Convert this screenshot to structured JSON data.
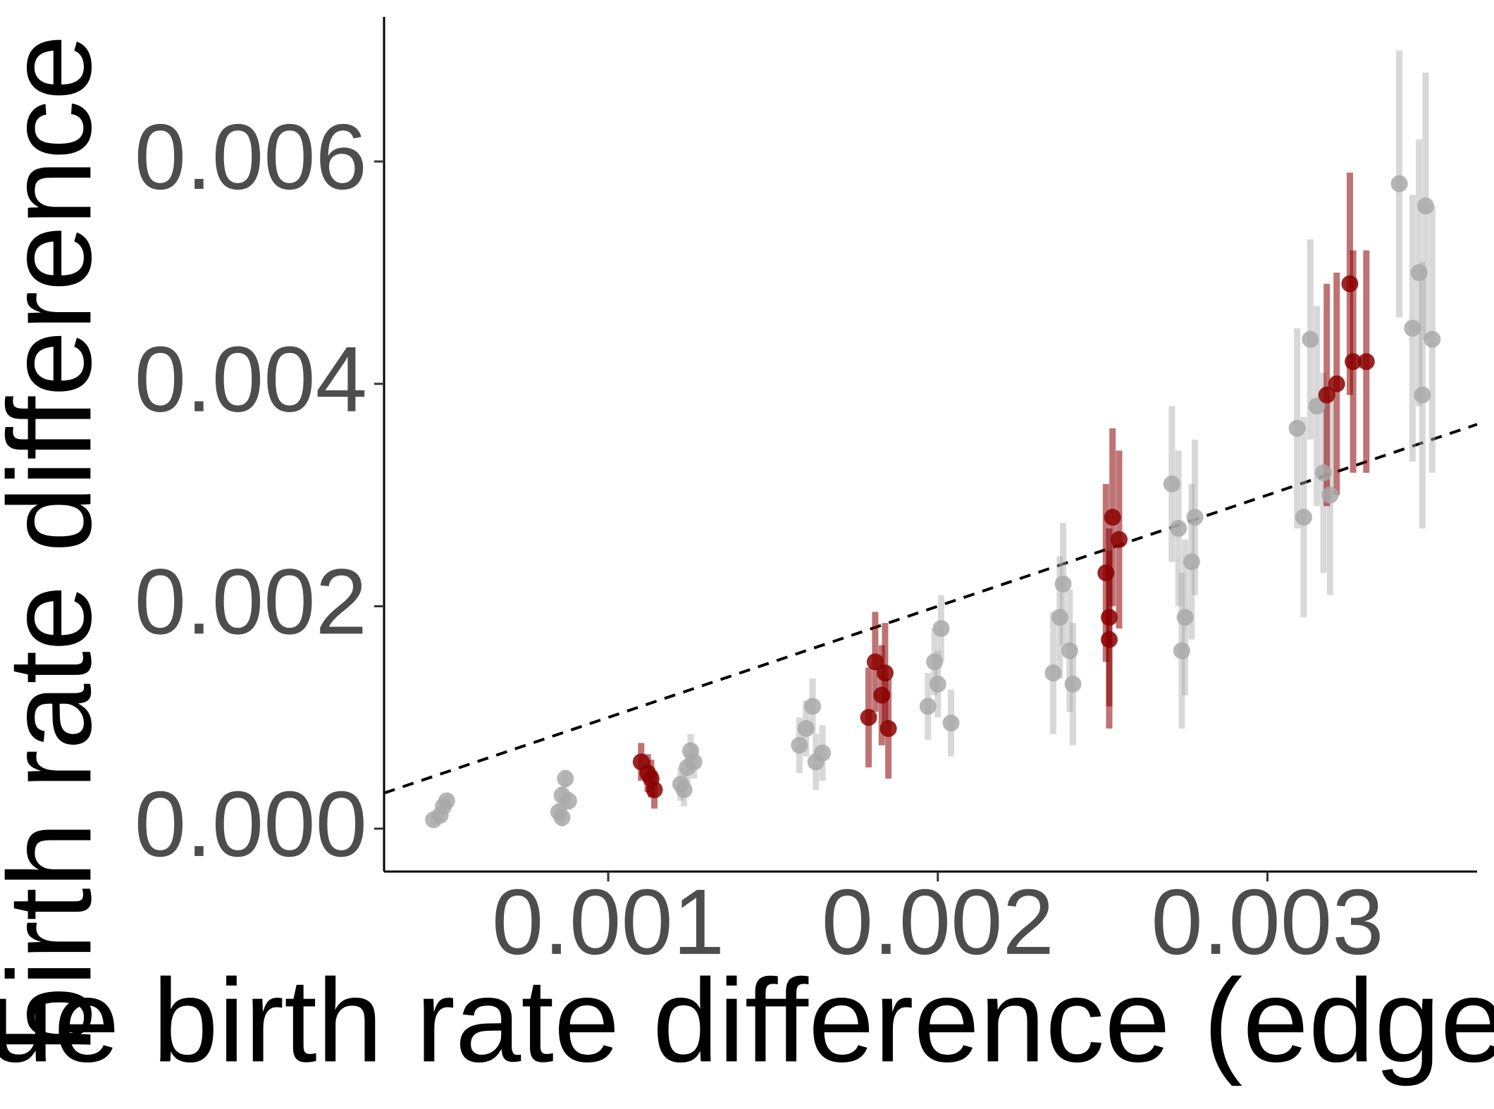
{
  "chart_data": {
    "type": "scatter",
    "x_label": "ue birth rate difference (edge",
    "y_label": "birth rate difference (",
    "xlim": [
      0.00032,
      0.003636
    ],
    "ylim": [
      -0.000386,
      0.0073
    ],
    "xticks": [
      0.001,
      0.002,
      0.003
    ],
    "yticks": [
      {
        "value": 0,
        "label": "0.000"
      },
      {
        "value": 0.002,
        "label": "0.002"
      },
      {
        "value": 0.004,
        "label": "0.004"
      },
      {
        "value": 0.006,
        "label": "0.006"
      }
    ],
    "identity_line": true,
    "grid": false,
    "series": [
      {
        "color": "#a9a9a9",
        "x": [
          0.00047,
          0.00049,
          0.0005,
          0.00051,
          0.00085,
          0.00086,
          0.00087,
          0.00088,
          0.00086,
          0.00122,
          0.00124,
          0.00126,
          0.00125,
          0.00123,
          0.00158,
          0.0016,
          0.00162,
          0.00163,
          0.00165,
          0.00197,
          0.00199,
          0.002,
          0.00201,
          0.00204,
          0.00235,
          0.00237,
          0.00238,
          0.0024,
          0.00241,
          0.00271,
          0.00273,
          0.00275,
          0.00277,
          0.00278,
          0.00274,
          0.00309,
          0.00311,
          0.00313,
          0.00315,
          0.00317,
          0.00319,
          0.0034,
          0.00344,
          0.00346,
          0.00348,
          0.0035,
          0.00347
        ],
        "values": [
          8e-05,
          0.00012,
          0.0002,
          0.00025,
          0.00015,
          0.0003,
          0.00045,
          0.00025,
          0.0001,
          0.0004,
          0.00055,
          0.0006,
          0.0007,
          0.00035,
          0.00075,
          0.0009,
          0.0011,
          0.0006,
          0.00068,
          0.0011,
          0.0015,
          0.0013,
          0.0018,
          0.00095,
          0.0014,
          0.0019,
          0.0022,
          0.0016,
          0.0013,
          0.0031,
          0.0027,
          0.0019,
          0.0024,
          0.0028,
          0.0016,
          0.0036,
          0.0028,
          0.0044,
          0.0038,
          0.0032,
          0.003,
          0.0058,
          0.0045,
          0.005,
          0.0056,
          0.0044,
          0.0039
        ],
        "errors": [
          5e-05,
          5e-05,
          5e-05,
          5e-05,
          8e-05,
          8e-05,
          8e-05,
          8e-05,
          8e-05,
          0.00015,
          0.00015,
          0.00015,
          0.00015,
          0.00015,
          0.00025,
          0.00025,
          0.00025,
          0.00025,
          0.00025,
          0.0003,
          0.0003,
          0.0003,
          0.0003,
          0.0003,
          0.00055,
          0.00055,
          0.00055,
          0.00055,
          0.00055,
          0.0007,
          0.0007,
          0.0007,
          0.0007,
          0.0007,
          0.0007,
          0.0009,
          0.0009,
          0.0009,
          0.0009,
          0.0009,
          0.0009,
          0.0012,
          0.0012,
          0.0012,
          0.0012,
          0.0012,
          0.0012
        ]
      },
      {
        "color": "#8b0000",
        "x": [
          0.0011,
          0.00112,
          0.00114,
          0.00113,
          0.00179,
          0.00181,
          0.00183,
          0.00185,
          0.00184,
          0.00251,
          0.00252,
          0.00253,
          0.00255,
          0.00252,
          0.00318,
          0.00321,
          0.00325,
          0.00326,
          0.0033
        ],
        "values": [
          0.0006,
          0.0005,
          0.00035,
          0.00045,
          0.001,
          0.0015,
          0.0012,
          0.0009,
          0.0014,
          0.0023,
          0.0017,
          0.0028,
          0.0026,
          0.0019,
          0.0039,
          0.004,
          0.0049,
          0.0042,
          0.0042
        ],
        "errors": [
          0.00017,
          0.00017,
          0.00017,
          0.00017,
          0.00045,
          0.00045,
          0.00045,
          0.00045,
          0.00045,
          0.0008,
          0.0008,
          0.0008,
          0.0008,
          0.0008,
          0.001,
          0.001,
          0.001,
          0.001,
          0.001
        ]
      }
    ]
  }
}
